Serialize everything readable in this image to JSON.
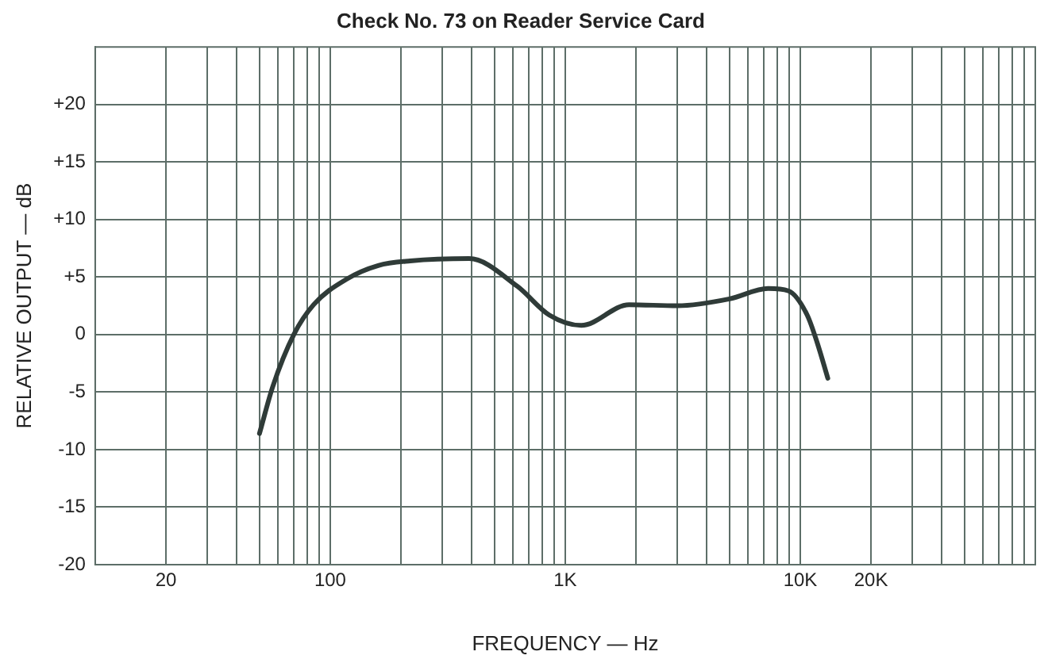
{
  "chart_data": {
    "type": "line",
    "title": "Check No. 73 on Reader Service Card",
    "xlabel": "FREQUENCY — Hz",
    "ylabel": "RELATIVE OUTPUT — dB",
    "log": "x",
    "grid": true,
    "marker": "none",
    "line_style": "solid",
    "xlim": [
      10,
      100000
    ],
    "ylim": [
      -20,
      25
    ],
    "xticks": [
      {
        "value": 10,
        "label": null
      },
      {
        "value": 20,
        "label": "20"
      },
      {
        "value": 30,
        "label": null
      },
      {
        "value": 40,
        "label": null
      },
      {
        "value": 50,
        "label": null
      },
      {
        "value": 60,
        "label": null
      },
      {
        "value": 70,
        "label": null
      },
      {
        "value": 80,
        "label": null
      },
      {
        "value": 90,
        "label": null
      },
      {
        "value": 100,
        "label": "100"
      },
      {
        "value": 200,
        "label": null
      },
      {
        "value": 300,
        "label": null
      },
      {
        "value": 400,
        "label": null
      },
      {
        "value": 500,
        "label": null
      },
      {
        "value": 600,
        "label": null
      },
      {
        "value": 700,
        "label": null
      },
      {
        "value": 800,
        "label": null
      },
      {
        "value": 900,
        "label": null
      },
      {
        "value": 1000,
        "label": "1K"
      },
      {
        "value": 2000,
        "label": null
      },
      {
        "value": 3000,
        "label": null
      },
      {
        "value": 4000,
        "label": null
      },
      {
        "value": 5000,
        "label": null
      },
      {
        "value": 6000,
        "label": null
      },
      {
        "value": 7000,
        "label": null
      },
      {
        "value": 8000,
        "label": null
      },
      {
        "value": 9000,
        "label": null
      },
      {
        "value": 10000,
        "label": "10K"
      },
      {
        "value": 20000,
        "label": "20K"
      },
      {
        "value": 30000,
        "label": null
      },
      {
        "value": 40000,
        "label": null
      },
      {
        "value": 50000,
        "label": null
      },
      {
        "value": 60000,
        "label": null
      },
      {
        "value": 70000,
        "label": null
      },
      {
        "value": 80000,
        "label": null
      },
      {
        "value": 90000,
        "label": null
      }
    ],
    "yticks": [
      {
        "value": -20,
        "label": "-20"
      },
      {
        "value": -15,
        "label": "-15"
      },
      {
        "value": -10,
        "label": "-10"
      },
      {
        "value": -5,
        "label": "-5"
      },
      {
        "value": 0,
        "label": "0"
      },
      {
        "value": 5,
        "label": "+5"
      },
      {
        "value": 10,
        "label": "+10"
      },
      {
        "value": 15,
        "label": "+15"
      },
      {
        "value": 20,
        "label": "+20"
      }
    ],
    "x": [
      50,
      57,
      70,
      85,
      117,
      160,
      219,
      390,
      625,
      855,
      1170,
      1870,
      3000,
      5000,
      7300,
      8900,
      10700,
      11800,
      13100
    ],
    "series": [
      {
        "color": "#2f3b38",
        "values": [
          -8.6,
          -4.5,
          0,
          2.6,
          4.8,
          6.0,
          6.4,
          6.6,
          4.2,
          1.7,
          0.8,
          2.6,
          2.5,
          3.1,
          4.0,
          3.8,
          1.7,
          -0.7,
          -3.8
        ]
      }
    ]
  }
}
